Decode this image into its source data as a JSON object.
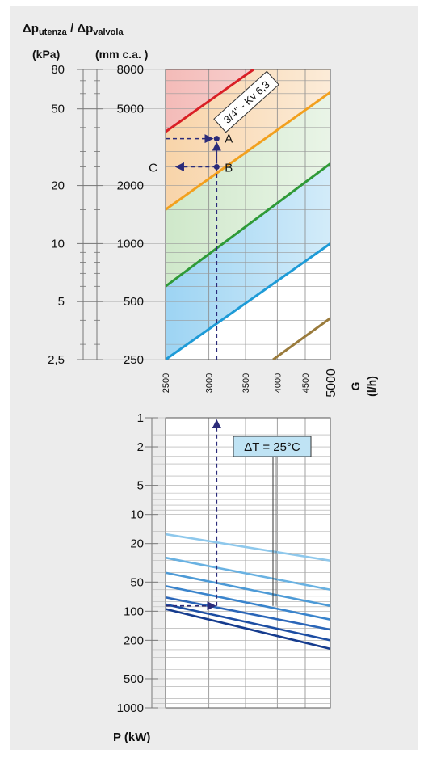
{
  "header": {
    "dp_prefix": "Δ",
    "dp_p": "p",
    "dp_sub1": "utenza",
    "dp_slash": " / ",
    "dp_sub2": "valvola",
    "unit_kpa": "(kPa)",
    "unit_mmca": "(mm c.a. )"
  },
  "chart_data": [
    {
      "type": "line",
      "title": "",
      "xlabel": "G (l/h)",
      "ylabel": "Δp utenza / Δp valvola",
      "x_scale": "log",
      "y_scale": "log",
      "xlim": [
        2500,
        5000
      ],
      "ylim_mmca": [
        250,
        8000
      ],
      "x_ticks": [
        "2500",
        "3000",
        "3500",
        "4000",
        "4500",
        "5000"
      ],
      "x_axis_title": "G",
      "x_axis_unit": "(l/h)",
      "y_ticks_kpa": [
        "80",
        "50",
        "20",
        "10",
        "5",
        "2,5"
      ],
      "y_ticks_mmca": [
        "8000",
        "5000",
        "2000",
        "1000",
        "500",
        "250"
      ],
      "grid": true,
      "series": [
        {
          "color": "#d91f26",
          "x": [
            2500,
            3620
          ],
          "y": [
            3800,
            8000
          ]
        },
        {
          "color": "#f2a01e",
          "x": [
            2500,
            5000
          ],
          "y": [
            1500,
            6100
          ]
        },
        {
          "color": "#2f9a37",
          "x": [
            2500,
            5000
          ],
          "y": [
            600,
            2600
          ]
        },
        {
          "color": "#1e9bd7",
          "x": [
            2500,
            5000
          ],
          "y": [
            250,
            1000
          ]
        },
        {
          "color": "#9a7b3c",
          "x": [
            3930,
            5000
          ],
          "y": [
            250,
            410
          ]
        }
      ],
      "bands": [
        {
          "color": "#f0a4a0",
          "from": "series.0",
          "to": "top"
        },
        {
          "color": "#f6c58c",
          "from": "series.1",
          "to": "series.0"
        },
        {
          "color": "#bfe0b8",
          "from": "series.2",
          "to": "series.1"
        },
        {
          "color": "#7cc6ef",
          "from": "series.3",
          "to": "series.2"
        }
      ],
      "valve_label": "3/4\" - Kv 6,3",
      "points": [
        {
          "label": "A",
          "x": 3100,
          "y": 3500
        },
        {
          "label": "B",
          "x": 3100,
          "y": 2500
        },
        {
          "label": "C",
          "x": 2500,
          "y": 2500
        }
      ]
    },
    {
      "type": "line",
      "title": "",
      "xlabel": "G (l/h)",
      "ylabel": "P (kW)",
      "y_scale": "log",
      "y_reversed": true,
      "xlim": [
        2500,
        5000
      ],
      "ylim": [
        1,
        1000
      ],
      "y_ticks": [
        "1",
        "2",
        "5",
        "10",
        "20",
        "50",
        "100",
        "200",
        "500",
        "1000"
      ],
      "y_axis_title": "P (kW)",
      "grid": true,
      "series": [
        {
          "color": "#8ec8ec",
          "x": [
            2500,
            5000
          ],
          "y": [
            16,
            30
          ]
        },
        {
          "color": "#6ab2e2",
          "x": [
            2500,
            5000
          ],
          "y": [
            28,
            60
          ]
        },
        {
          "color": "#4d9ad6",
          "x": [
            2500,
            5000
          ],
          "y": [
            40,
            88
          ]
        },
        {
          "color": "#3a84cc",
          "x": [
            2500,
            5000
          ],
          "y": [
            55,
            122
          ]
        },
        {
          "color": "#2b66b8",
          "x": [
            2500,
            5000
          ],
          "y": [
            72,
            155
          ]
        },
        {
          "color": "#1d4ea3",
          "x": [
            2500,
            5000
          ],
          "y": [
            85,
            200
          ]
        },
        {
          "color": "#163c8e",
          "x": [
            2500,
            5000
          ],
          "y": [
            95,
            245
          ]
        }
      ],
      "annotation": "ΔT = 25°C",
      "arrow_x": 3100,
      "arrow_y": 88
    }
  ]
}
